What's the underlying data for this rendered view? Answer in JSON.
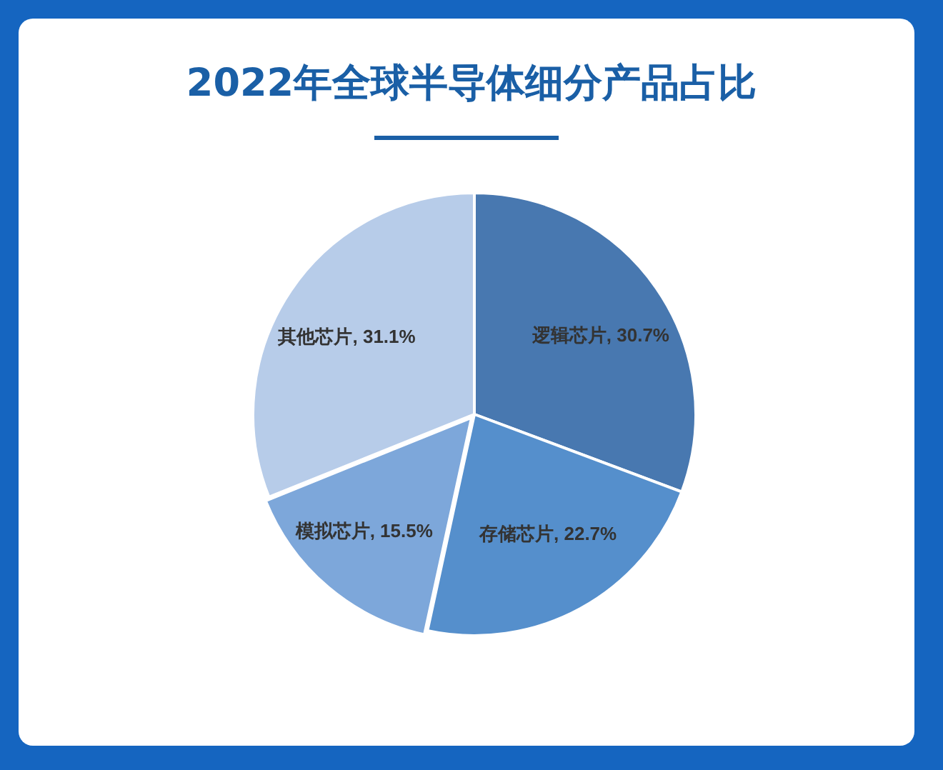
{
  "chart_data": {
    "type": "pie",
    "title": "2022年全球半导体细分产品占比",
    "categories": [
      "逻辑芯片",
      "存储芯片",
      "模拟芯片",
      "其他芯片"
    ],
    "values": [
      30.7,
      22.7,
      15.5,
      31.1
    ],
    "colors": [
      "#4878b0",
      "#558fcc",
      "#7da7da",
      "#b7cce9"
    ],
    "value_labels": [
      "30.7%",
      "22.7%",
      "15.5%",
      "31.1%"
    ],
    "legend": false
  }
}
